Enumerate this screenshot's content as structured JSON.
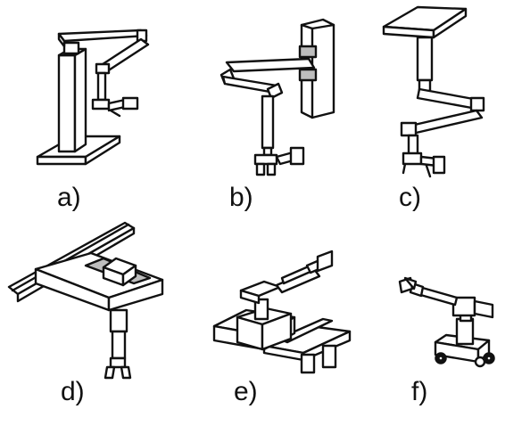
{
  "figure": {
    "panels": [
      {
        "id": "a",
        "label": "a)",
        "icon": "pedestal-articulated-manipulator"
      },
      {
        "id": "b",
        "label": "b)",
        "icon": "wall-mounted-manipulator"
      },
      {
        "id": "c",
        "label": "c)",
        "icon": "ceiling-mounted-manipulator"
      },
      {
        "id": "d",
        "label": "d)",
        "icon": "gantry-manipulator"
      },
      {
        "id": "e",
        "label": "e)",
        "icon": "rail-mounted-manipulator"
      },
      {
        "id": "f",
        "label": "f)",
        "icon": "mobile-manipulator"
      }
    ]
  }
}
